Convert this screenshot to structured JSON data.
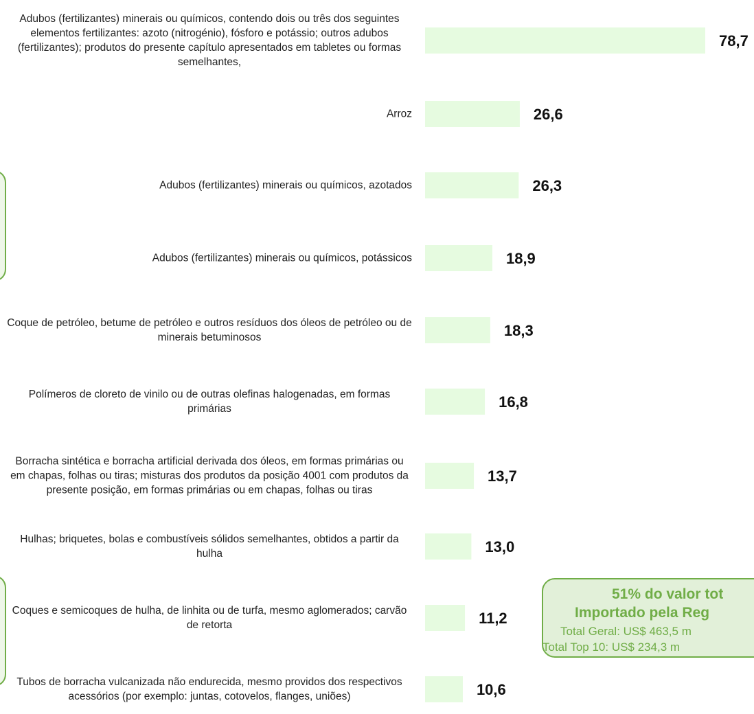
{
  "chart_data": {
    "type": "bar",
    "orientation": "horizontal",
    "categories": [
      "Adubos (fertilizantes) minerais ou químicos, contendo dois ou três dos seguintes elementos fertilizantes: azoto (nitrogénio), fósforo e potássio; outros adubos (fertilizantes); produtos do presente capítulo apresentados em tabletes ou formas semelhantes,",
      "Arroz",
      "Adubos (fertilizantes) minerais ou químicos, azotados",
      "Adubos (fertilizantes) minerais ou químicos, potássicos",
      "Coque de petróleo, betume de petróleo e outros resíduos dos óleos de petróleo ou de minerais betuminosos",
      "Polímeros de cloreto de vinilo ou de outras olefinas halogenadas, em formas primárias",
      "Borracha sintética e borracha artificial derivada dos óleos, em formas primárias ou em chapas, folhas ou tiras; misturas dos produtos da posição 4001 com produtos da presente posição, em formas primárias ou em chapas, folhas ou tiras",
      "Hulhas; briquetes, bolas e combustíveis sólidos semelhantes, obtidos a partir da hulha",
      "Coques e semicoques de hulha, de linhita ou de turfa, mesmo aglomerados; carvão de retorta",
      "Tubos de borracha vulcanizada não endurecida, mesmo providos dos respectivos acessórios (por exemplo: juntas, cotovelos, flanges, uniões)"
    ],
    "values": [
      78.7,
      26.6,
      26.3,
      18.9,
      18.3,
      16.8,
      13.7,
      13.0,
      11.2,
      10.6
    ],
    "value_labels": [
      "78,7",
      "26,6",
      "26,3",
      "18,9",
      "18,3",
      "16,8",
      "13,7",
      "13,0",
      "11,2",
      "10,6"
    ],
    "color": "#e6fbe0",
    "xlim": [
      0,
      78.7
    ],
    "annotation": {
      "lines": [
        "51% do valor tot",
        "Importado pela Reg",
        "Total Geral: US$ 463,5 m",
        "Total Top 10: US$ 234,3 m"
      ]
    }
  }
}
